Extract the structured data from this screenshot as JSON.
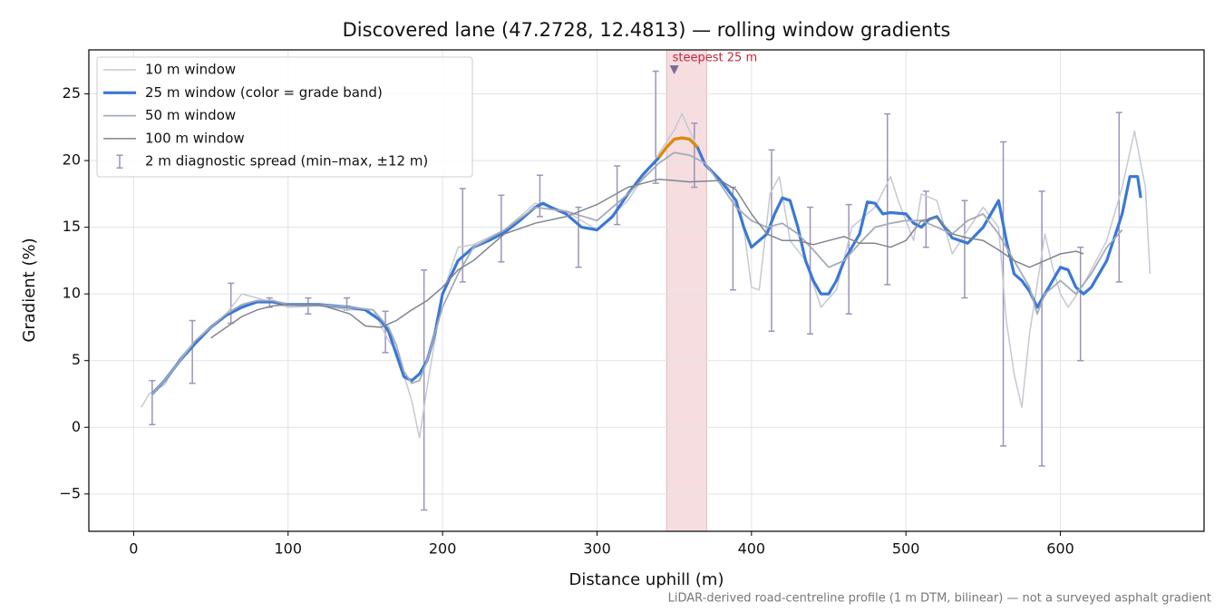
{
  "chart_data": {
    "type": "line",
    "title": "Discovered lane (47.2728, 12.4813) — rolling window gradients",
    "x_label": "Distance uphill (m)",
    "y_label": "Gradient (%)",
    "footnote": "LiDAR-derived road-centreline profile (1 m DTM, bilinear) — not a surveyed asphalt gradient",
    "xlim": [
      -29,
      693
    ],
    "ylim": [
      -7.8,
      28.3
    ],
    "xticks": [
      0,
      100,
      200,
      300,
      400,
      500,
      600
    ],
    "yticks": [
      {
        "value": -5,
        "label": "−5"
      },
      0,
      5,
      10,
      15,
      20,
      25
    ],
    "grid": true,
    "legend": "upper left",
    "highlight_span": {
      "x": [
        345,
        371
      ],
      "color": "#e8b4ba"
    },
    "annotation": {
      "text": "steepest 25 m",
      "x": 350,
      "y": 26.8,
      "color": "#c4283a",
      "marker_color": "#7a6a9a"
    },
    "series": [
      {
        "name": "10 m window",
        "color": "#c5c9d2",
        "width": 1.5,
        "x": [
          5,
          10,
          20,
          30,
          40,
          50,
          60,
          70,
          80,
          100,
          120,
          140,
          155,
          165,
          170,
          180,
          185,
          190,
          200,
          210,
          220,
          240,
          260,
          280,
          300,
          320,
          340,
          350,
          355,
          360,
          370,
          385,
          395,
          400,
          405,
          412,
          418,
          425,
          435,
          445,
          455,
          465,
          480,
          490,
          495,
          505,
          510,
          520,
          530,
          540,
          550,
          560,
          565,
          570,
          575,
          580,
          590,
          595,
          600,
          605,
          615,
          630,
          640,
          648,
          655,
          658
        ],
        "values": [
          1.5,
          2.5,
          3.2,
          5.2,
          6.5,
          7.6,
          8.5,
          10,
          9.7,
          9,
          9.1,
          8.8,
          8.8,
          6.5,
          5.8,
          2,
          -0.8,
          3,
          10,
          13.5,
          13.7,
          14.8,
          16.8,
          16.2,
          14.8,
          17,
          20.5,
          22.3,
          23.5,
          22.2,
          19.8,
          18,
          15,
          10.5,
          10.3,
          17.5,
          18.8,
          14,
          12.5,
          9,
          10.3,
          15,
          16.5,
          18.8,
          17,
          14,
          17.5,
          17,
          13,
          14.8,
          16.5,
          15,
          8,
          4,
          1.5,
          7,
          14.5,
          12,
          10,
          9,
          10.7,
          14,
          18,
          22.2,
          18,
          11.5
        ]
      },
      {
        "name": "25 m window (color = grade band)",
        "color": "#3a78d6",
        "width": 3.2,
        "grade_bands": [
          {
            "min": 20,
            "color": "#e08a00"
          }
        ],
        "x": [
          12,
          20,
          30,
          40,
          50,
          60,
          70,
          80,
          90,
          100,
          110,
          120,
          130,
          140,
          150,
          160,
          165,
          170,
          175,
          180,
          185,
          190,
          195,
          200,
          210,
          220,
          230,
          240,
          250,
          260,
          265,
          270,
          280,
          290,
          300,
          310,
          320,
          330,
          340,
          345,
          350,
          355,
          360,
          365,
          370,
          380,
          390,
          395,
          400,
          410,
          415,
          420,
          425,
          430,
          435,
          440,
          445,
          450,
          455,
          460,
          470,
          475,
          480,
          485,
          490,
          500,
          505,
          510,
          515,
          520,
          530,
          540,
          550,
          560,
          565,
          570,
          575,
          580,
          585,
          590,
          595,
          600,
          605,
          610,
          615,
          620,
          630,
          640,
          645,
          650,
          652
        ],
        "values": [
          2.5,
          3.5,
          5,
          6.3,
          7.5,
          8.4,
          9,
          9.4,
          9.4,
          9.2,
          9.2,
          9.2,
          9.1,
          9,
          8.8,
          8,
          7.2,
          5.5,
          3.8,
          3.5,
          4,
          5,
          7,
          10,
          12.5,
          13.5,
          14,
          14.6,
          15.5,
          16.5,
          16.8,
          16.5,
          16,
          15,
          14.8,
          15.8,
          17.5,
          19,
          20.2,
          21,
          21.6,
          21.7,
          21.6,
          21,
          19.7,
          18.5,
          17,
          15,
          13.5,
          14.5,
          16,
          17.2,
          17,
          15,
          12.5,
          11,
          10,
          10,
          11,
          12.5,
          14.5,
          16.9,
          16.8,
          16,
          16.1,
          16,
          15.3,
          15,
          15.6,
          15.8,
          14.2,
          13.8,
          15,
          17,
          14,
          11.5,
          11,
          10.2,
          9,
          10,
          11,
          12,
          11.8,
          10.5,
          10,
          10.5,
          12.5,
          16,
          18.8,
          18.8,
          17.2
        ]
      },
      {
        "name": "50 m window",
        "color": "#a3abb8",
        "width": 1.8,
        "x": [
          12,
          20,
          30,
          40,
          50,
          60,
          70,
          80,
          90,
          100,
          120,
          140,
          155,
          165,
          170,
          175,
          180,
          185,
          190,
          195,
          200,
          210,
          220,
          240,
          260,
          280,
          300,
          320,
          340,
          350,
          360,
          370,
          380,
          390,
          400,
          410,
          420,
          430,
          440,
          450,
          460,
          470,
          480,
          490,
          500,
          510,
          520,
          530,
          540,
          550,
          560,
          570,
          580,
          585,
          590,
          600,
          610,
          620,
          630,
          640
        ],
        "values": [
          2.5,
          3.5,
          5,
          6.5,
          7.5,
          8.5,
          9.2,
          9.5,
          9.5,
          9.2,
          9.2,
          9,
          8.8,
          7.5,
          6.2,
          4.2,
          3.3,
          3.5,
          5,
          7,
          9,
          11.5,
          13.5,
          14.8,
          16.5,
          16.2,
          15.5,
          17.5,
          19.8,
          20.6,
          20.4,
          19.8,
          18.2,
          16.5,
          15.5,
          15,
          15.3,
          14.5,
          13.3,
          12,
          12.5,
          13.8,
          15,
          15.3,
          15.5,
          15.5,
          15,
          14.5,
          15.5,
          16,
          14.5,
          12.5,
          10.5,
          8.5,
          10,
          11,
          10,
          11.5,
          13.5,
          14.8
        ]
      },
      {
        "name": "100 m window",
        "color": "#80868f",
        "width": 1.5,
        "x": [
          50,
          60,
          70,
          80,
          90,
          100,
          120,
          140,
          150,
          160,
          170,
          180,
          190,
          200,
          210,
          220,
          230,
          240,
          260,
          280,
          300,
          320,
          340,
          350,
          360,
          380,
          390,
          400,
          410,
          420,
          430,
          440,
          450,
          460,
          470,
          480,
          490,
          500,
          510,
          520,
          530,
          540,
          550,
          560,
          570,
          580,
          590,
          600,
          610,
          615
        ],
        "values": [
          6.7,
          7.5,
          8.3,
          8.8,
          9.1,
          9.2,
          9.2,
          8.5,
          7.6,
          7.5,
          8,
          8.8,
          9.5,
          10.5,
          11.8,
          12.5,
          13.5,
          14.5,
          15.3,
          15.8,
          16.7,
          18,
          18.6,
          18.5,
          18.4,
          18.5,
          17.8,
          16,
          14.5,
          14,
          14,
          13.7,
          14,
          14.3,
          13.8,
          13.8,
          13.5,
          14,
          15.5,
          15.7,
          14.5,
          14.2,
          14,
          13.3,
          12.5,
          12,
          12.5,
          13,
          13.2,
          13
        ]
      }
    ],
    "error_bars": {
      "name": "2 m diagnostic spread (min–max, ±12 m)",
      "color": "#9c94b8",
      "x": [
        12,
        38,
        63,
        88,
        113,
        138,
        163,
        188,
        213,
        238,
        263,
        288,
        313,
        338,
        363,
        388,
        413,
        438,
        463,
        488,
        513,
        538,
        563,
        588,
        613,
        638
      ],
      "low": [
        0.2,
        3.3,
        7.8,
        9,
        8.5,
        8.8,
        5.6,
        -6.2,
        10.9,
        12.4,
        15.8,
        12,
        15.2,
        18.3,
        18,
        10.3,
        7.2,
        7,
        8.5,
        10.7,
        13.5,
        9.7,
        -1.4,
        -2.9,
        5,
        10.9
      ],
      "high": [
        3.5,
        8,
        10.8,
        9.7,
        9.7,
        9.7,
        8.7,
        11.8,
        17.9,
        17.4,
        18.9,
        16.5,
        19.6,
        26.7,
        22.8,
        18,
        20.8,
        16.5,
        16.7,
        23.5,
        17.7,
        17,
        21.4,
        17.7,
        13.5,
        23.6
      ]
    }
  }
}
